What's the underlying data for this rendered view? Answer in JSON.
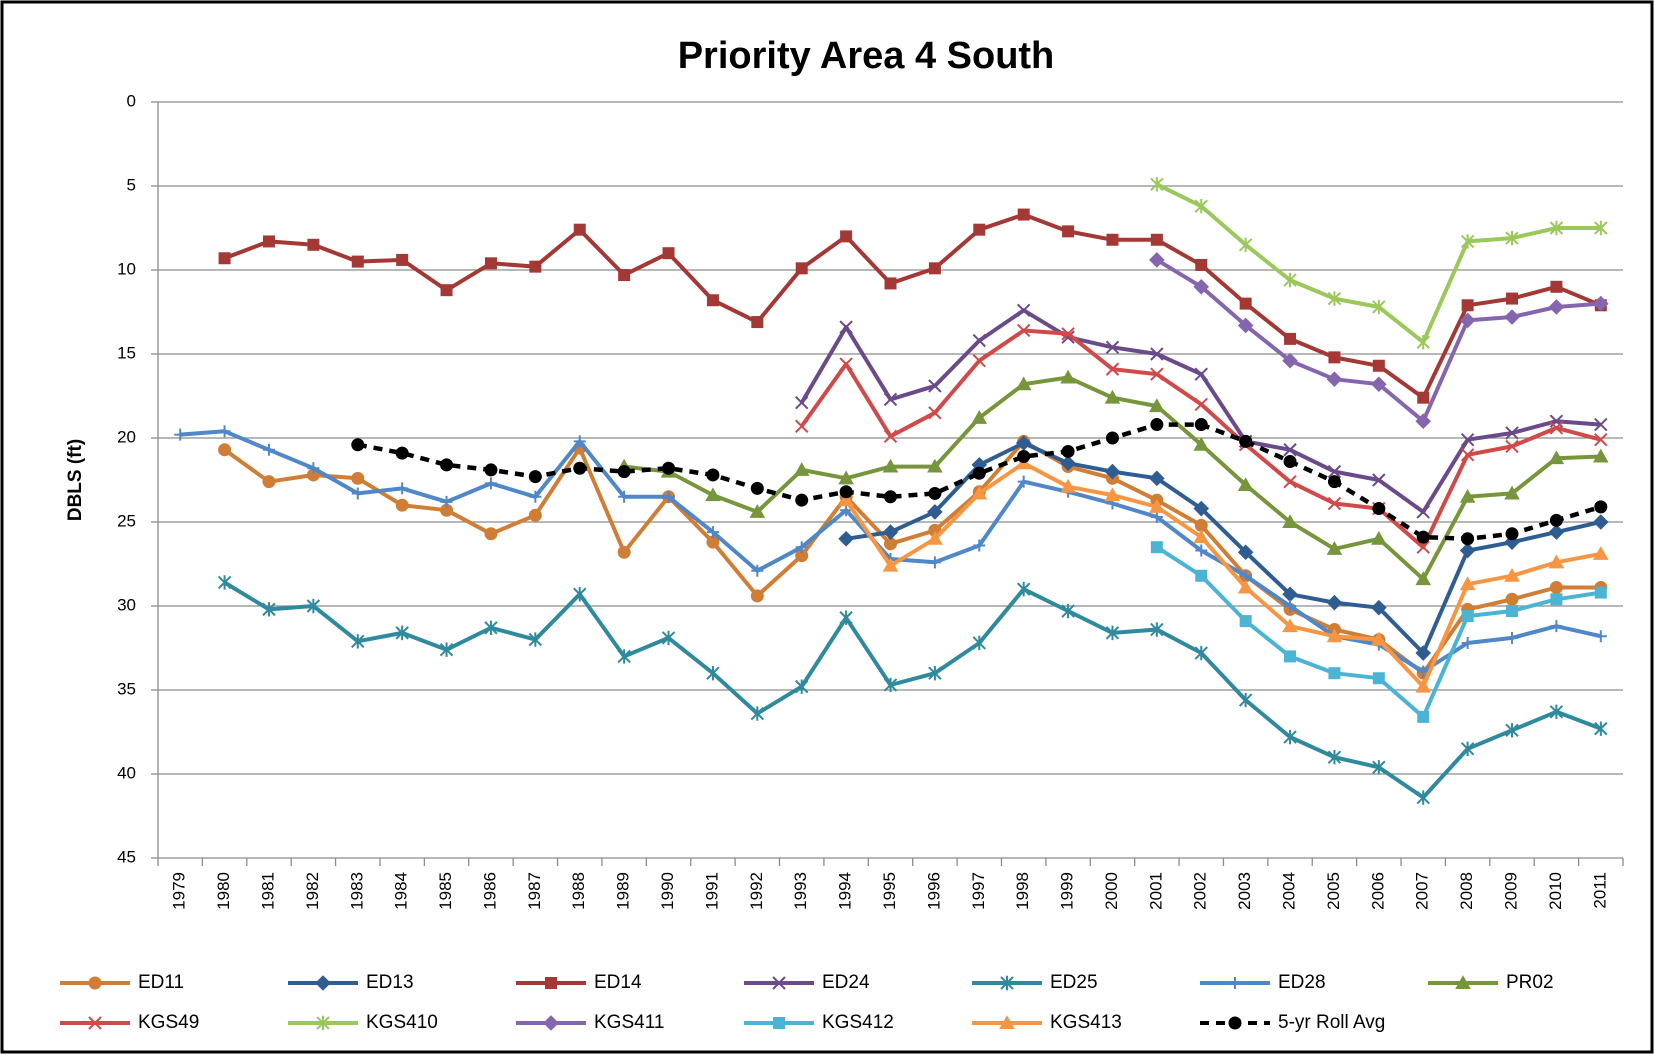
{
  "chart_data": {
    "type": "line",
    "title": "Priority Area 4 South",
    "y_label": "DBLS (ft)",
    "categories": [
      "1979",
      "1980",
      "1981",
      "1982",
      "1983",
      "1984",
      "1985",
      "1986",
      "1987",
      "1988",
      "1989",
      "1990",
      "1991",
      "1992",
      "1993",
      "1994",
      "1995",
      "1996",
      "1997",
      "1998",
      "1999",
      "2000",
      "2001",
      "2002",
      "2003",
      "2004",
      "2005",
      "2006",
      "2007",
      "2008",
      "2009",
      "2010",
      "2011"
    ],
    "ylim": [
      0,
      45
    ],
    "yticks": [
      0,
      5,
      10,
      15,
      20,
      25,
      30,
      35,
      40,
      45
    ],
    "y_reversed": true,
    "grid": true,
    "legend": "bottom",
    "series": [
      {
        "name": "ED11",
        "color": "#d07d36",
        "marker": "circle",
        "values": [
          null,
          20.7,
          22.6,
          22.2,
          22.4,
          24.0,
          24.3,
          25.7,
          24.6,
          20.6,
          26.8,
          23.5,
          26.2,
          29.4,
          27.0,
          23.5,
          26.3,
          25.5,
          23.2,
          20.2,
          21.7,
          22.4,
          23.7,
          25.2,
          28.2,
          30.2,
          31.4,
          32.0,
          34.0,
          30.2,
          29.6,
          28.9,
          28.9
        ]
      },
      {
        "name": "ED13",
        "color": "#2f5d92",
        "marker": "diamond",
        "values": [
          null,
          null,
          null,
          null,
          null,
          null,
          null,
          null,
          null,
          null,
          null,
          null,
          null,
          null,
          null,
          26.0,
          25.6,
          24.4,
          21.6,
          20.3,
          21.5,
          22.0,
          22.4,
          24.2,
          26.8,
          29.3,
          29.8,
          30.1,
          32.8,
          26.7,
          26.2,
          25.6,
          25.0
        ]
      },
      {
        "name": "ED14",
        "color": "#a33835",
        "marker": "square",
        "values": [
          null,
          9.3,
          8.3,
          8.5,
          9.5,
          9.4,
          11.2,
          9.6,
          9.8,
          7.6,
          10.3,
          9.0,
          11.8,
          13.1,
          9.9,
          8.0,
          10.8,
          9.9,
          7.6,
          6.7,
          7.7,
          8.2,
          8.2,
          9.7,
          12.0,
          14.1,
          15.2,
          15.7,
          17.6,
          12.1,
          11.7,
          11.0,
          12.1
        ]
      },
      {
        "name": "ED24",
        "color": "#6b4a8a",
        "marker": "x",
        "values": [
          null,
          null,
          null,
          null,
          null,
          null,
          null,
          null,
          null,
          null,
          null,
          null,
          null,
          null,
          17.9,
          13.4,
          17.7,
          16.9,
          14.2,
          12.4,
          14.0,
          14.6,
          15.0,
          16.2,
          20.2,
          20.7,
          22.0,
          22.5,
          24.4,
          20.1,
          19.7,
          19.0,
          19.2
        ]
      },
      {
        "name": "ED25",
        "color": "#2e8a9c",
        "marker": "star",
        "values": [
          null,
          28.6,
          30.2,
          30.0,
          32.1,
          31.6,
          32.6,
          31.3,
          32.0,
          29.3,
          33.0,
          31.9,
          34.0,
          36.4,
          34.8,
          30.7,
          34.7,
          34.0,
          32.2,
          29.0,
          30.3,
          31.6,
          31.4,
          32.8,
          35.6,
          37.8,
          39.0,
          39.6,
          41.4,
          38.5,
          37.4,
          36.3,
          37.3
        ]
      },
      {
        "name": "ED28",
        "color": "#4f87c8",
        "marker": "plus",
        "values": [
          19.8,
          19.6,
          20.7,
          21.8,
          23.3,
          23.0,
          23.8,
          22.7,
          23.5,
          20.2,
          23.5,
          23.5,
          25.6,
          27.9,
          26.5,
          24.3,
          27.2,
          27.4,
          26.4,
          22.6,
          23.2,
          23.9,
          24.7,
          26.7,
          28.2,
          30.0,
          31.8,
          32.3,
          33.9,
          32.2,
          31.9,
          31.2,
          31.8
        ]
      },
      {
        "name": "PR02",
        "color": "#77953a",
        "marker": "triangle",
        "values": [
          null,
          null,
          null,
          null,
          null,
          null,
          null,
          null,
          null,
          null,
          21.7,
          22.0,
          23.4,
          24.4,
          21.9,
          22.4,
          21.7,
          21.7,
          18.8,
          16.8,
          16.4,
          17.6,
          18.1,
          20.4,
          22.8,
          25.0,
          26.6,
          26.0,
          28.4,
          23.5,
          23.3,
          21.2,
          21.1
        ]
      },
      {
        "name": "KGS49",
        "color": "#d04a4a",
        "marker": "x",
        "values": [
          null,
          null,
          null,
          null,
          null,
          null,
          null,
          null,
          null,
          null,
          null,
          null,
          null,
          null,
          19.3,
          15.6,
          19.9,
          18.5,
          15.4,
          13.6,
          13.8,
          15.9,
          16.2,
          18.0,
          20.4,
          22.6,
          23.9,
          24.2,
          26.5,
          21.0,
          20.5,
          19.4,
          20.1
        ]
      },
      {
        "name": "KGS410",
        "color": "#9bc85a",
        "marker": "star",
        "values": [
          null,
          null,
          null,
          null,
          null,
          null,
          null,
          null,
          null,
          null,
          null,
          null,
          null,
          null,
          null,
          null,
          null,
          null,
          null,
          null,
          null,
          null,
          4.9,
          6.2,
          8.5,
          10.6,
          11.7,
          12.2,
          14.3,
          8.3,
          8.1,
          7.5,
          7.5
        ]
      },
      {
        "name": "KGS411",
        "color": "#8566ae",
        "marker": "diamond",
        "values": [
          null,
          null,
          null,
          null,
          null,
          null,
          null,
          null,
          null,
          null,
          null,
          null,
          null,
          null,
          null,
          null,
          null,
          null,
          null,
          null,
          null,
          null,
          9.4,
          11.0,
          13.3,
          15.4,
          16.5,
          16.8,
          19.0,
          13.0,
          12.8,
          12.2,
          12.0
        ]
      },
      {
        "name": "KGS412",
        "color": "#4bb4d4",
        "marker": "square",
        "values": [
          null,
          null,
          null,
          null,
          null,
          null,
          null,
          null,
          null,
          null,
          null,
          null,
          null,
          null,
          null,
          null,
          null,
          null,
          null,
          null,
          null,
          null,
          26.5,
          28.2,
          30.9,
          33.0,
          34.0,
          34.3,
          36.6,
          30.6,
          30.3,
          29.6,
          29.2
        ]
      },
      {
        "name": "KGS413",
        "color": "#f79642",
        "marker": "triangle",
        "values": [
          null,
          null,
          null,
          null,
          null,
          null,
          null,
          null,
          null,
          null,
          null,
          null,
          null,
          null,
          null,
          23.7,
          27.6,
          26.0,
          23.3,
          21.5,
          22.9,
          23.4,
          24.1,
          25.9,
          28.9,
          31.2,
          31.8,
          32.0,
          34.8,
          28.7,
          28.2,
          27.4,
          26.9
        ]
      },
      {
        "name": "5-yr Roll Avg",
        "color": "#000000",
        "marker": "circle",
        "dashed": true,
        "values": [
          null,
          null,
          null,
          null,
          20.4,
          20.9,
          21.6,
          21.9,
          22.3,
          21.8,
          22.0,
          21.8,
          22.2,
          23.0,
          23.7,
          23.2,
          23.5,
          23.3,
          22.1,
          21.1,
          20.8,
          20.0,
          19.2,
          19.2,
          20.2,
          21.4,
          22.6,
          24.2,
          25.9,
          26.0,
          25.7,
          24.9,
          24.1
        ]
      }
    ]
  }
}
